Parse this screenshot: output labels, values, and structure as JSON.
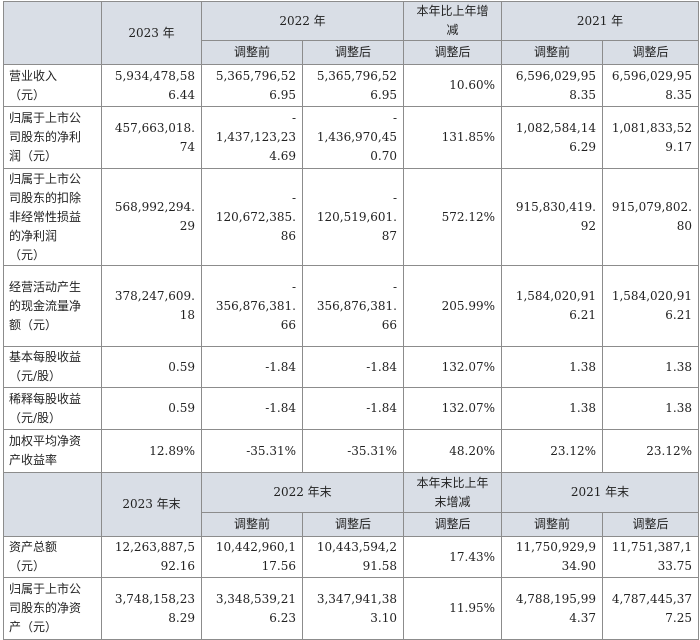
{
  "header1": {
    "y2023": "2023 年",
    "y2022": "2022 年",
    "change": "本年比上年增\n减",
    "y2021": "2021 年",
    "before": "调整前",
    "after": "调整后"
  },
  "rows1": [
    {
      "label": "营业收入\n（元）",
      "v2023": "5,934,478,58\n6.44",
      "v2022b": "5,365,796,52\n6.95",
      "v2022a": "5,365,796,52\n6.95",
      "chg": "10.60%",
      "v2021b": "6,596,029,95\n8.35",
      "v2021a": "6,596,029,95\n8.35"
    },
    {
      "label": "归属于上市公\n司股东的净利\n润（元）",
      "v2023": "457,663,018.\n74",
      "v2022b": "-\n1,437,123,23\n4.69",
      "v2022a": "-\n1,436,970,45\n0.70",
      "chg": "131.85%",
      "v2021b": "1,082,584,14\n6.29",
      "v2021a": "1,081,833,52\n9.17"
    },
    {
      "label": "归属于上市公\n司股东的扣除\n非经常性损益\n的净利润\n（元）",
      "v2023": "568,992,294.\n29",
      "v2022b": "-\n120,672,385.\n86",
      "v2022a": "-\n120,519,601.\n87",
      "chg": "572.12%",
      "v2021b": "915,830,419.\n92",
      "v2021a": "915,079,802.\n80"
    },
    {
      "label": "经营活动产生\n的现金流量净\n额（元）",
      "v2023": "378,247,609.\n18",
      "v2022b": "-\n356,876,381.\n66",
      "v2022a": "-\n356,876,381.\n66",
      "chg": "205.99%",
      "v2021b": "1,584,020,91\n6.21",
      "v2021a": "1,584,020,91\n6.21"
    },
    {
      "label": "基本每股收益\n（元/股）",
      "v2023": "0.59",
      "v2022b": "-1.84",
      "v2022a": "-1.84",
      "chg": "132.07%",
      "v2021b": "1.38",
      "v2021a": "1.38"
    },
    {
      "label": "稀释每股收益\n（元/股）",
      "v2023": "0.59",
      "v2022b": "-1.84",
      "v2022a": "-1.84",
      "chg": "132.07%",
      "v2021b": "1.38",
      "v2021a": "1.38"
    },
    {
      "label": "加权平均净资\n产收益率",
      "v2023": "12.89%",
      "v2022b": "-35.31%",
      "v2022a": "-35.31%",
      "chg": "48.20%",
      "v2021b": "23.12%",
      "v2021a": "23.12%"
    }
  ],
  "header2": {
    "y2023": "2023 年末",
    "y2022": "2022 年末",
    "change": "本年末比上年\n末增减",
    "y2021": "2021 年末",
    "before": "调整前",
    "after": "调整后"
  },
  "rows2": [
    {
      "label": "资产总额\n（元）",
      "v2023": "12,263,887,5\n92.16",
      "v2022b": "10,442,960,1\n17.56",
      "v2022a": "10,443,594,2\n91.58",
      "chg": "17.43%",
      "v2021b": "11,750,929,9\n34.90",
      "v2021a": "11,751,387,1\n33.75"
    },
    {
      "label": "归属于上市公\n司股东的净资\n产（元）",
      "v2023": "3,748,158,23\n8.29",
      "v2022b": "3,348,539,21\n6.23",
      "v2022a": "3,347,941,38\n3.10",
      "chg": "11.95%",
      "v2021b": "4,788,195,99\n4.37",
      "v2021a": "4,787,445,37\n7.25"
    }
  ]
}
